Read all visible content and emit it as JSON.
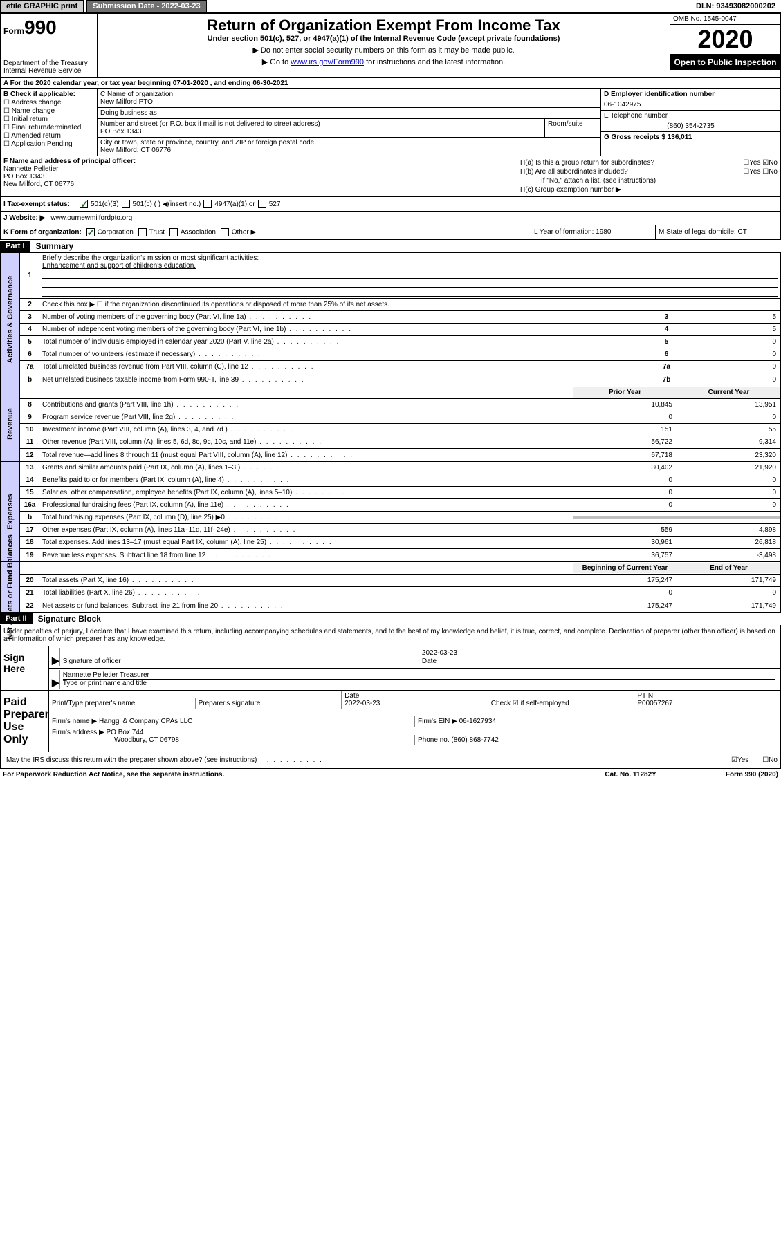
{
  "header": {
    "efile": "efile GRAPHIC print",
    "submission_label": "Submission Date - 2022-03-23",
    "dln": "DLN: 93493082000202"
  },
  "form": {
    "form_word": "Form",
    "form_num": "990",
    "title": "Return of Organization Exempt From Income Tax",
    "subtitle": "Under section 501(c), 527, or 4947(a)(1) of the Internal Revenue Code (except private foundations)",
    "note1": "▶ Do not enter social security numbers on this form as it may be made public.",
    "note2": "▶ Go to ",
    "link": "www.irs.gov/Form990",
    "note3": " for instructions and the latest information.",
    "dept": "Department of the Treasury Internal Revenue Service",
    "omb": "OMB No. 1545-0047",
    "year": "2020",
    "inspection": "Open to Public Inspection"
  },
  "row_a": "A For the 2020 calendar year, or tax year beginning 07-01-2020    , and ending 06-30-2021",
  "section_b": {
    "header": "B Check if applicable:",
    "items": [
      "☐ Address change",
      "☐ Name change",
      "☐ Initial return",
      "☐ Final return/terminated",
      "☐ Amended return",
      "☐ Application Pending"
    ]
  },
  "section_c": {
    "name_label": "C Name of organization",
    "name": "New Milford PTO",
    "dba_label": "Doing business as",
    "dba": "",
    "addr_label": "Number and street (or P.O. box if mail is not delivered to street address)",
    "room_label": "Room/suite",
    "addr": "PO Box 1343",
    "city_label": "City or town, state or province, country, and ZIP or foreign postal code",
    "city": "New Milford, CT  06776"
  },
  "section_d": {
    "ein_label": "D Employer identification number",
    "ein": "06-1042975",
    "phone_label": "E Telephone number",
    "phone": "(860) 354-2735",
    "gross_label": "G Gross receipts $ 136,011"
  },
  "section_f": {
    "label": "F  Name and address of principal officer:",
    "name": "Nannette Pelletier",
    "addr": "PO Box 1343",
    "city": "New Milford, CT  06776"
  },
  "section_h": {
    "ha": "H(a)  Is this a group return for subordinates?",
    "ha_val": "☐Yes ☑No",
    "hb": "H(b)  Are all subordinates included?",
    "hb_val": "☐Yes ☐No",
    "hb_note": "If \"No,\" attach a list. (see instructions)",
    "hc": "H(c)  Group exemption number ▶"
  },
  "row_i": {
    "label": "I    Tax-exempt status:",
    "opts": [
      "501(c)(3)",
      "501(c) (  ) ◀(insert no.)",
      "4947(a)(1) or",
      "527"
    ]
  },
  "row_j": {
    "label": "J   Website: ▶",
    "value": "www.ournewmilfordpto.org"
  },
  "row_k": {
    "k": "K Form of organization:",
    "opts": [
      "Corporation",
      "Trust",
      "Association",
      "Other ▶"
    ],
    "l": "L Year of formation: 1980",
    "m": "M State of legal domicile: CT"
  },
  "part1": {
    "header": "Part I",
    "title": "Summary",
    "q1": "Briefly describe the organization's mission or most significant activities:",
    "q1_ans": "Enhancement and support of children's education.",
    "q2": "Check this box ▶ ☐  if the organization discontinued its operations or disposed of more than 25% of its net assets.",
    "side_gov": "Activities & Governance",
    "side_rev": "Revenue",
    "side_exp": "Expenses",
    "side_net": "Net Assets or Fund Balances",
    "rows_gov": [
      {
        "n": "3",
        "d": "Number of voting members of the governing body (Part VI, line 1a)",
        "c": "3",
        "v": "5"
      },
      {
        "n": "4",
        "d": "Number of independent voting members of the governing body (Part VI, line 1b)",
        "c": "4",
        "v": "5"
      },
      {
        "n": "5",
        "d": "Total number of individuals employed in calendar year 2020 (Part V, line 2a)",
        "c": "5",
        "v": "0"
      },
      {
        "n": "6",
        "d": "Total number of volunteers (estimate if necessary)",
        "c": "6",
        "v": "0"
      },
      {
        "n": "7a",
        "d": "Total unrelated business revenue from Part VIII, column (C), line 12",
        "c": "7a",
        "v": "0"
      },
      {
        "n": "b",
        "d": "Net unrelated business taxable income from Form 990-T, line 39",
        "c": "7b",
        "v": "0"
      }
    ],
    "head_prior": "Prior Year",
    "head_curr": "Current Year",
    "rows_rev": [
      {
        "n": "8",
        "d": "Contributions and grants (Part VIII, line 1h)",
        "p": "10,845",
        "c": "13,951"
      },
      {
        "n": "9",
        "d": "Program service revenue (Part VIII, line 2g)",
        "p": "0",
        "c": "0"
      },
      {
        "n": "10",
        "d": "Investment income (Part VIII, column (A), lines 3, 4, and 7d )",
        "p": "151",
        "c": "55"
      },
      {
        "n": "11",
        "d": "Other revenue (Part VIII, column (A), lines 5, 6d, 8c, 9c, 10c, and 11e)",
        "p": "56,722",
        "c": "9,314"
      },
      {
        "n": "12",
        "d": "Total revenue—add lines 8 through 11 (must equal Part VIII, column (A), line 12)",
        "p": "67,718",
        "c": "23,320"
      }
    ],
    "rows_exp": [
      {
        "n": "13",
        "d": "Grants and similar amounts paid (Part IX, column (A), lines 1–3 )",
        "p": "30,402",
        "c": "21,920"
      },
      {
        "n": "14",
        "d": "Benefits paid to or for members (Part IX, column (A), line 4)",
        "p": "0",
        "c": "0"
      },
      {
        "n": "15",
        "d": "Salaries, other compensation, employee benefits (Part IX, column (A), lines 5–10)",
        "p": "0",
        "c": "0"
      },
      {
        "n": "16a",
        "d": "Professional fundraising fees (Part IX, column (A), line 11e)",
        "p": "0",
        "c": "0"
      },
      {
        "n": "b",
        "d": "Total fundraising expenses (Part IX, column (D), line 25) ▶0",
        "p": "",
        "c": "",
        "grey": true
      },
      {
        "n": "17",
        "d": "Other expenses (Part IX, column (A), lines 11a–11d, 11f–24e)",
        "p": "559",
        "c": "4,898"
      },
      {
        "n": "18",
        "d": "Total expenses. Add lines 13–17 (must equal Part IX, column (A), line 25)",
        "p": "30,961",
        "c": "26,818"
      },
      {
        "n": "19",
        "d": "Revenue less expenses. Subtract line 18 from line 12",
        "p": "36,757",
        "c": "-3,498"
      }
    ],
    "head_beg": "Beginning of Current Year",
    "head_end": "End of Year",
    "rows_net": [
      {
        "n": "20",
        "d": "Total assets (Part X, line 16)",
        "p": "175,247",
        "c": "171,749"
      },
      {
        "n": "21",
        "d": "Total liabilities (Part X, line 26)",
        "p": "0",
        "c": "0"
      },
      {
        "n": "22",
        "d": "Net assets or fund balances. Subtract line 21 from line 20",
        "p": "175,247",
        "c": "171,749"
      }
    ]
  },
  "part2": {
    "header": "Part II",
    "title": "Signature Block",
    "declaration": "Under penalties of perjury, I declare that I have examined this return, including accompanying schedules and statements, and to the best of my knowledge and belief, it is true, correct, and complete. Declaration of preparer (other than officer) is based on all information of which preparer has any knowledge."
  },
  "sign": {
    "label": "Sign Here",
    "sig_label": "Signature of officer",
    "date": "2022-03-23",
    "date_label": "Date",
    "name": "Nannette Pelletier  Treasurer",
    "name_label": "Type or print name and title"
  },
  "preparer": {
    "label": "Paid Preparer Use Only",
    "print_label": "Print/Type preparer's name",
    "sig_label": "Preparer's signature",
    "date_label": "Date",
    "date": "2022-03-23",
    "check_label": "Check ☑ if self-employed",
    "ptin_label": "PTIN",
    "ptin": "P00057267",
    "firm_label": "Firm's name    ▶",
    "firm": "Hanggi & Company CPAs LLC",
    "ein_label": "Firm's EIN ▶",
    "ein": "06-1627934",
    "addr_label": "Firm's address ▶",
    "addr": "PO Box 744",
    "city": "Woodbury, CT  06798",
    "phone_label": "Phone no.",
    "phone": "(860) 868-7742"
  },
  "discuss": {
    "q": "May the IRS discuss this return with the preparer shown above? (see instructions)",
    "yes": "☑Yes",
    "no": "☐No"
  },
  "footer": {
    "left": "For Paperwork Reduction Act Notice, see the separate instructions.",
    "mid": "Cat. No. 11282Y",
    "right": "Form 990 (2020)"
  }
}
